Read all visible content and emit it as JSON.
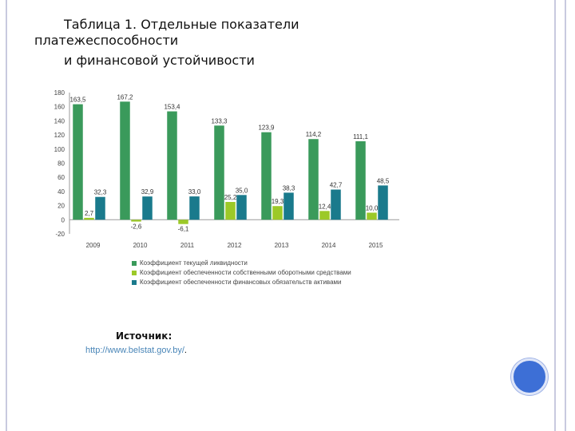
{
  "slide": {
    "title_lines": [
      "Таблица 1. Отдельные показатели",
      "платежеспособности",
      "и финансовой устойчивости"
    ],
    "source_label": "Источник:",
    "source_url": "http://www.belstat.gov.by/",
    "source_suffix": "."
  },
  "chart_data": {
    "type": "bar",
    "categories": [
      "2009",
      "2010",
      "2011",
      "2012",
      "2013",
      "2014",
      "2015"
    ],
    "series": [
      {
        "name": "Коэффициент текущей ликвидности",
        "color": "#3a9a5b",
        "values": [
          163.5,
          167.2,
          153.4,
          133.3,
          123.9,
          114.2,
          111.1
        ],
        "labels": [
          "163,5",
          "167,2",
          "153,4",
          "133,3",
          "123,9",
          "114,2",
          "111,1"
        ]
      },
      {
        "name": "Коэффициент обеспеченности собственными оборотными средствами",
        "color": "#9cc928",
        "values": [
          2.7,
          -2.6,
          -6.1,
          25.2,
          19.3,
          12.4,
          10.0
        ],
        "labels": [
          "2,7",
          "-2,6",
          "-6,1",
          "25,2",
          "19,3",
          "12,4",
          "10,0"
        ]
      },
      {
        "name": "Коэффициент обеспеченности финансовых обязательств активами",
        "color": "#1a7a8c",
        "values": [
          32.3,
          32.9,
          33.0,
          35.0,
          38.3,
          42.7,
          48.5
        ],
        "labels": [
          "32,3",
          "32,9",
          "33,0",
          "35,0",
          "38,3",
          "42,7",
          "48,5"
        ]
      }
    ],
    "y_ticks": [
      "180",
      "160",
      "140",
      "120",
      "100",
      "80",
      "60",
      "40",
      "20",
      "0",
      "-20"
    ],
    "ylim": [
      -20,
      180
    ],
    "grid": false,
    "legend_position": "bottom"
  }
}
